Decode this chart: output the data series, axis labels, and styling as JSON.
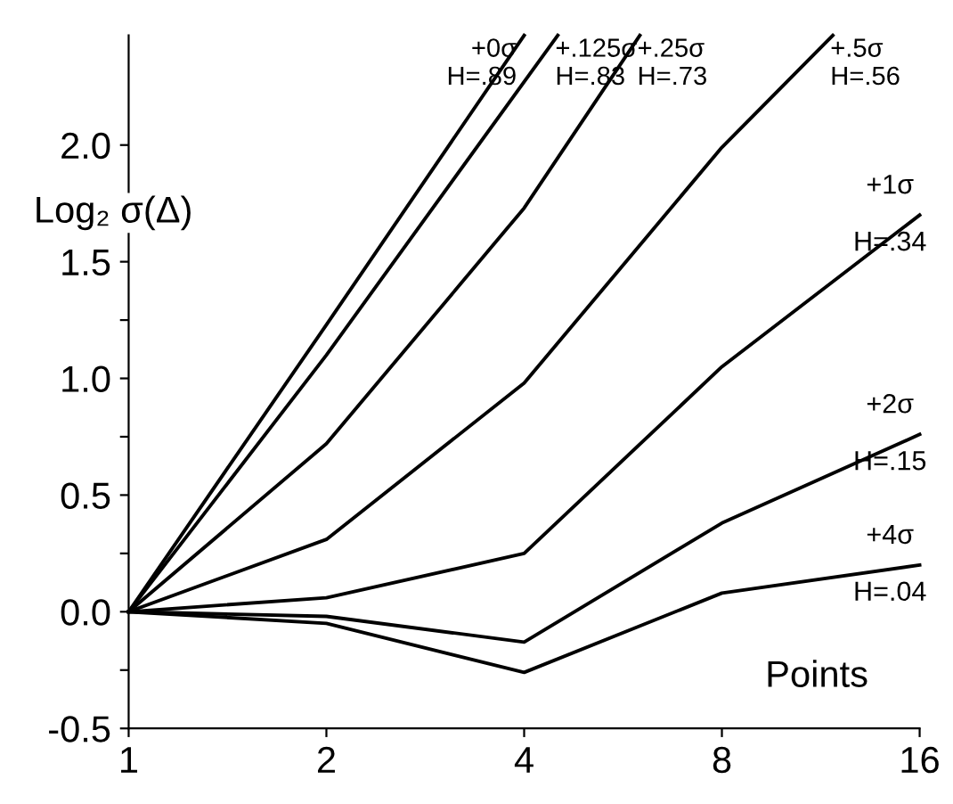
{
  "chart_data": {
    "type": "line",
    "xlabel": "Points",
    "ylabel": "Log₂ σ(Δ)",
    "log": "x",
    "grid": false,
    "legend": false,
    "marker": "none",
    "line_style": "solid",
    "xlim": [
      1,
      16
    ],
    "xticks": [
      1,
      2,
      4,
      8,
      16
    ],
    "ylim": [
      -0.5,
      2.47
    ],
    "yticks": [
      -0.5,
      {
        "value": -0.25,
        "label": null
      },
      {
        "value": 0,
        "label": "0.0"
      },
      {
        "value": 0.25,
        "label": null
      },
      0.5,
      {
        "value": 0.75,
        "label": null
      },
      {
        "value": 1,
        "label": "1.0"
      },
      {
        "value": 1.25,
        "label": null
      },
      1.5,
      {
        "value": 1.75,
        "label": null
      },
      {
        "value": 2,
        "label": "2.0"
      }
    ],
    "series": [
      {
        "name": "+0σ\nH=.89",
        "color": "#000000",
        "x": [
          1,
          2,
          4
        ],
        "values": [
          0,
          1.23,
          2.47
        ]
      },
      {
        "name": "+.125σ\nH=.83",
        "color": "#000000",
        "x": [
          1,
          2,
          4.5
        ],
        "values": [
          0,
          1.1,
          2.47
        ]
      },
      {
        "name": "+.25σ\nH=.73",
        "color": "#000000",
        "x": [
          1,
          2,
          4,
          6
        ],
        "values": [
          0,
          0.72,
          1.73,
          2.47
        ]
      },
      {
        "name": "+.5σ\nH=.56",
        "color": "#000000",
        "x": [
          1,
          2,
          4,
          8,
          11.8
        ],
        "values": [
          0,
          0.31,
          0.98,
          1.99,
          2.47
        ]
      },
      {
        "name": "+1σ\nH=.34",
        "color": "#000000",
        "x": [
          1,
          2,
          4,
          8,
          16
        ],
        "values": [
          0,
          0.06,
          0.25,
          1.05,
          1.7
        ]
      },
      {
        "name": "+2σ\nH=.15",
        "color": "#000000",
        "x": [
          1,
          2,
          4,
          8,
          16
        ],
        "values": [
          0,
          -0.02,
          -0.13,
          0.38,
          0.76
        ]
      },
      {
        "name": "+4σ\nH=.04",
        "color": "#000000",
        "x": [
          1,
          2,
          4,
          8,
          16
        ],
        "values": [
          0,
          -0.05,
          -0.26,
          0.08,
          0.2
        ]
      }
    ]
  }
}
